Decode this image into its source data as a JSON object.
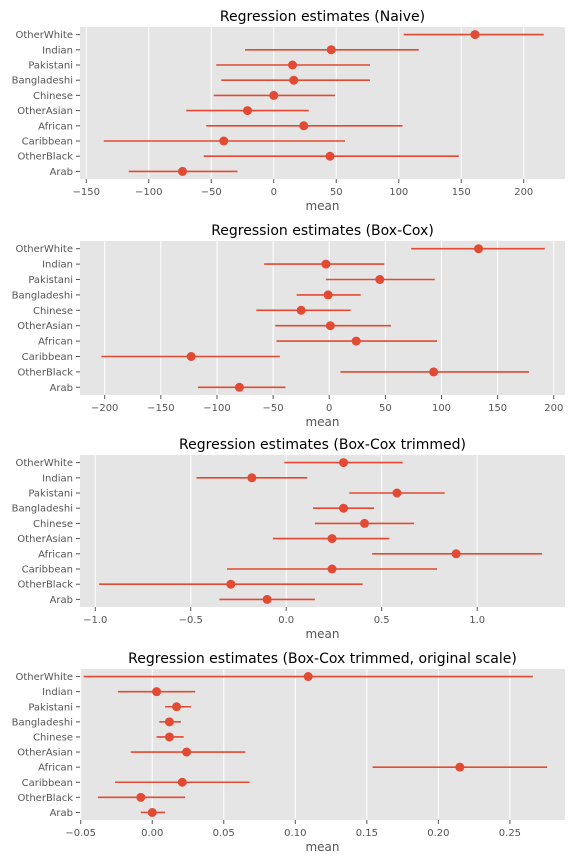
{
  "chart_data": [
    {
      "type": "errorbar",
      "title": "Regression estimates (Naive)",
      "xlabel": "mean",
      "ylabel": "",
      "categories": [
        "OtherWhite",
        "Indian",
        "Pakistani",
        "Bangladeshi",
        "Chinese",
        "OtherAsian",
        "African",
        "Caribbean",
        "OtherBlack",
        "Arab"
      ],
      "values": [
        161,
        46,
        15,
        16,
        0,
        -21,
        24,
        -40,
        45,
        -73
      ],
      "lower": [
        104,
        -23,
        -46,
        -42,
        -48,
        -70,
        -54,
        -136,
        -56,
        -116
      ],
      "upper": [
        216,
        116,
        77,
        77,
        49,
        28,
        103,
        57,
        148,
        -29
      ],
      "xlim": [
        -155,
        233
      ],
      "xticks": [
        -150,
        -100,
        -50,
        0,
        50,
        100,
        150,
        200
      ],
      "xtick_labels": [
        "−150",
        "−100",
        "−50",
        "0",
        "50",
        "100",
        "150",
        "200"
      ],
      "grid": true
    },
    {
      "type": "errorbar",
      "title": "Regression estimates (Box-Cox)",
      "xlabel": "mean",
      "ylabel": "",
      "categories": [
        "OtherWhite",
        "Indian",
        "Pakistani",
        "Bangladeshi",
        "Chinese",
        "OtherAsian",
        "African",
        "Caribbean",
        "OtherBlack",
        "Arab"
      ],
      "values": [
        133,
        -3,
        45,
        -1,
        -25,
        1,
        24,
        -123,
        93,
        -80
      ],
      "lower": [
        73,
        -58,
        -3,
        -29,
        -65,
        -48,
        -47,
        -203,
        10,
        -117
      ],
      "upper": [
        192,
        49,
        94,
        28,
        19,
        55,
        96,
        -44,
        178,
        -39
      ],
      "xlim": [
        -222,
        210
      ],
      "xticks": [
        -200,
        -150,
        -100,
        -50,
        0,
        50,
        100,
        150,
        200
      ],
      "xtick_labels": [
        "−200",
        "−150",
        "−100",
        "−50",
        "0",
        "50",
        "100",
        "150",
        "200"
      ],
      "grid": true
    },
    {
      "type": "errorbar",
      "title": "Regression estimates (Box-Cox trimmed)",
      "xlabel": "mean",
      "ylabel": "",
      "categories": [
        "OtherWhite",
        "Indian",
        "Pakistani",
        "Bangladeshi",
        "Chinese",
        "OtherAsian",
        "African",
        "Caribbean",
        "OtherBlack",
        "Arab"
      ],
      "values": [
        0.3,
        -0.18,
        0.58,
        0.3,
        0.41,
        0.24,
        0.89,
        0.24,
        -0.29,
        -0.1
      ],
      "lower": [
        -0.01,
        -0.47,
        0.33,
        0.14,
        0.15,
        -0.07,
        0.45,
        -0.31,
        -0.98,
        -0.35
      ],
      "upper": [
        0.61,
        0.11,
        0.83,
        0.46,
        0.67,
        0.54,
        1.34,
        0.79,
        0.4,
        0.15
      ],
      "xlim": [
        -1.08,
        1.46
      ],
      "xticks": [
        -1.0,
        -0.5,
        0.0,
        0.5,
        1.0
      ],
      "xtick_labels": [
        "−1.0",
        "−0.5",
        "0.0",
        "0.5",
        "1.0"
      ],
      "grid": true
    },
    {
      "type": "errorbar",
      "title": "Regression estimates (Box-Cox trimmed, original scale)",
      "xlabel": "mean",
      "ylabel": "",
      "categories": [
        "OtherWhite",
        "Indian",
        "Pakistani",
        "Bangladeshi",
        "Chinese",
        "OtherAsian",
        "African",
        "Caribbean",
        "OtherBlack",
        "Arab"
      ],
      "values": [
        0.109,
        0.003,
        0.017,
        0.012,
        0.012,
        0.024,
        0.215,
        0.021,
        -0.008,
        0.0
      ],
      "lower": [
        -0.048,
        -0.024,
        0.009,
        0.005,
        0.003,
        -0.015,
        0.154,
        -0.026,
        -0.038,
        -0.008
      ],
      "upper": [
        0.266,
        0.03,
        0.027,
        0.02,
        0.022,
        0.065,
        0.276,
        0.068,
        0.023,
        0.009
      ],
      "xlim": [
        -0.0505,
        0.2885
      ],
      "xticks": [
        -0.05,
        0.0,
        0.05,
        0.1,
        0.15,
        0.2,
        0.25
      ],
      "xtick_labels": [
        "−0.05",
        "0.00",
        "0.05",
        "0.10",
        "0.15",
        "0.20",
        "0.25"
      ],
      "grid": true
    }
  ],
  "colors": {
    "marker": "#e24a33",
    "panel_background": "#e5e5e5",
    "grid": "#ffffff",
    "tick_text": "#555555",
    "title_text": "#000000"
  }
}
